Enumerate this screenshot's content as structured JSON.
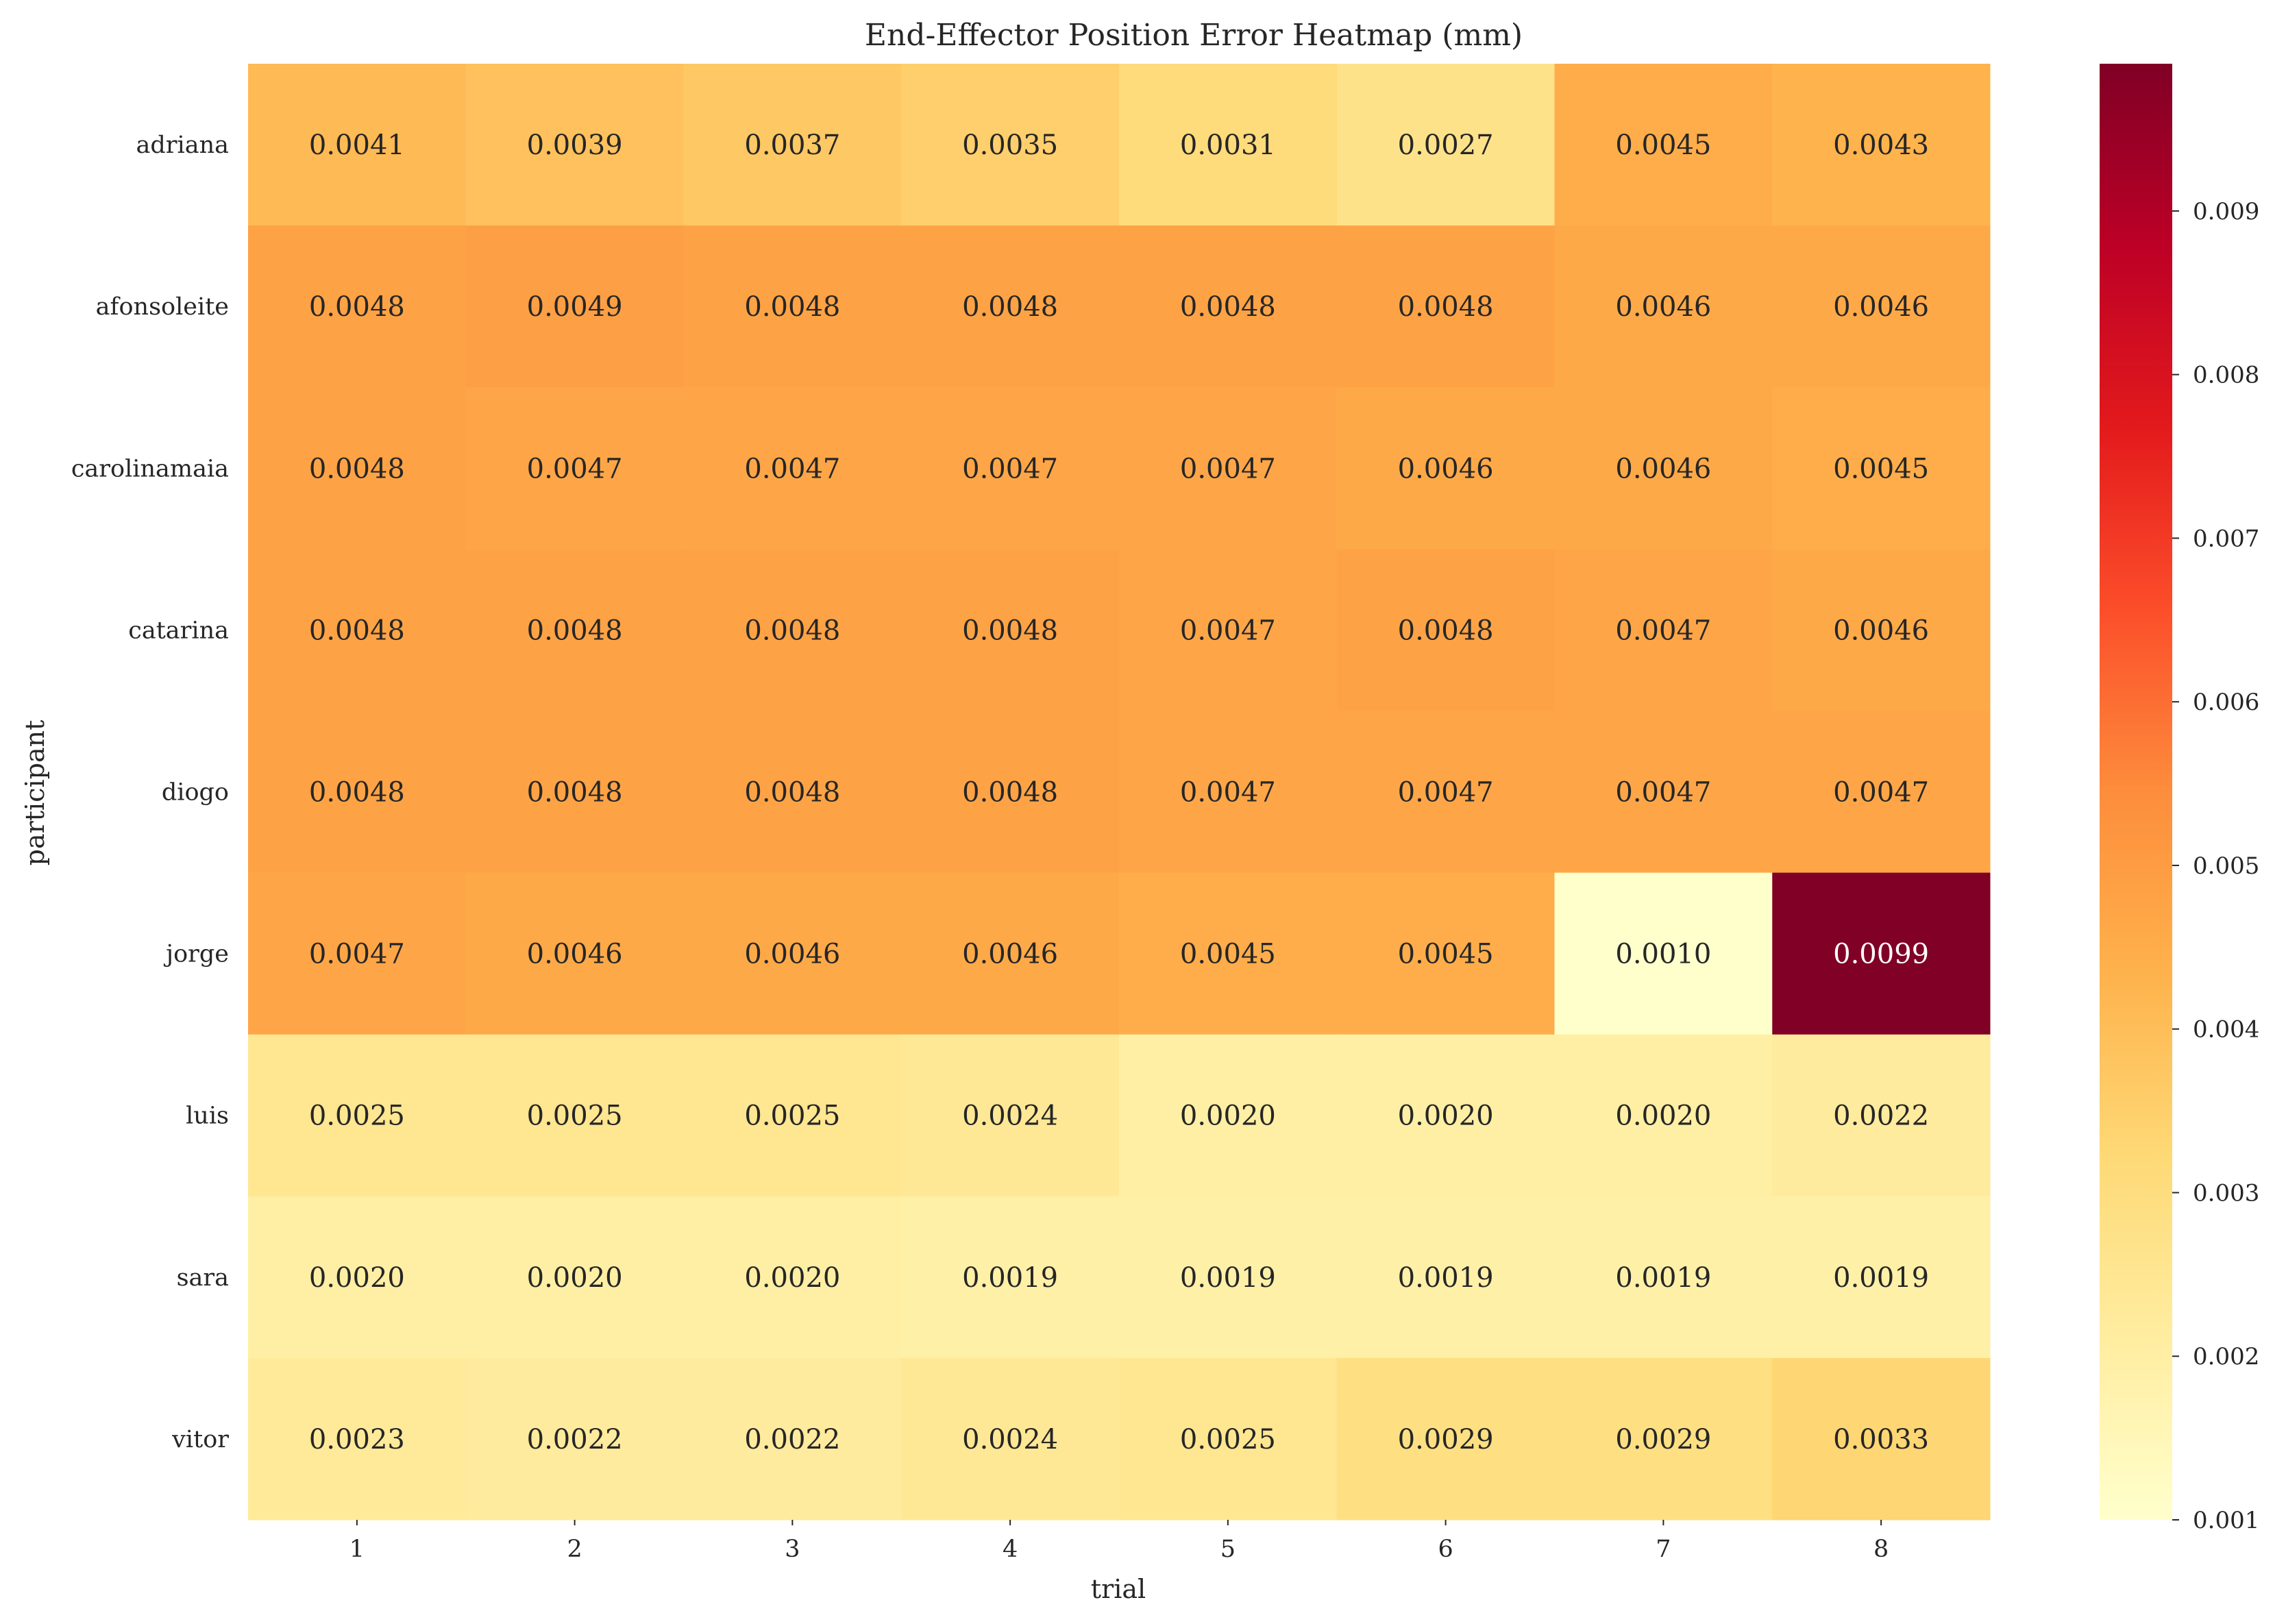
{
  "chart_data": {
    "type": "heatmap",
    "title": "End-Effector Position Error Heatmap (mm)",
    "xlabel": "trial",
    "ylabel": "participant",
    "x_categories": [
      "1",
      "2",
      "3",
      "4",
      "5",
      "6",
      "7",
      "8"
    ],
    "y_categories": [
      "adriana",
      "afonsoleite",
      "carolinamaia",
      "catarina",
      "diogo",
      "jorge",
      "luis",
      "sara",
      "vitor"
    ],
    "values": [
      [
        0.0041,
        0.0039,
        0.0037,
        0.0035,
        0.0031,
        0.0027,
        0.0045,
        0.0043
      ],
      [
        0.0048,
        0.0049,
        0.0048,
        0.0048,
        0.0048,
        0.0048,
        0.0046,
        0.0046
      ],
      [
        0.0048,
        0.0047,
        0.0047,
        0.0047,
        0.0047,
        0.0046,
        0.0046,
        0.0045
      ],
      [
        0.0048,
        0.0048,
        0.0048,
        0.0048,
        0.0047,
        0.0048,
        0.0047,
        0.0046
      ],
      [
        0.0048,
        0.0048,
        0.0048,
        0.0048,
        0.0047,
        0.0047,
        0.0047,
        0.0047
      ],
      [
        0.0047,
        0.0046,
        0.0046,
        0.0046,
        0.0045,
        0.0045,
        0.001,
        0.0099
      ],
      [
        0.0025,
        0.0025,
        0.0025,
        0.0024,
        0.002,
        0.002,
        0.002,
        0.0022
      ],
      [
        0.002,
        0.002,
        0.002,
        0.0019,
        0.0019,
        0.0019,
        0.0019,
        0.0019
      ],
      [
        0.0023,
        0.0022,
        0.0022,
        0.0024,
        0.0025,
        0.0029,
        0.0029,
        0.0033
      ]
    ],
    "value_format": "0.0000",
    "colormap": "YlOrRd",
    "colorbar": {
      "vmin": 0.001,
      "vmax": 0.0099,
      "ticks": [
        "0.001",
        "0.002",
        "0.003",
        "0.004",
        "0.005",
        "0.006",
        "0.007",
        "0.008",
        "0.009"
      ]
    },
    "grid": false,
    "legend": "colorbar-right"
  }
}
